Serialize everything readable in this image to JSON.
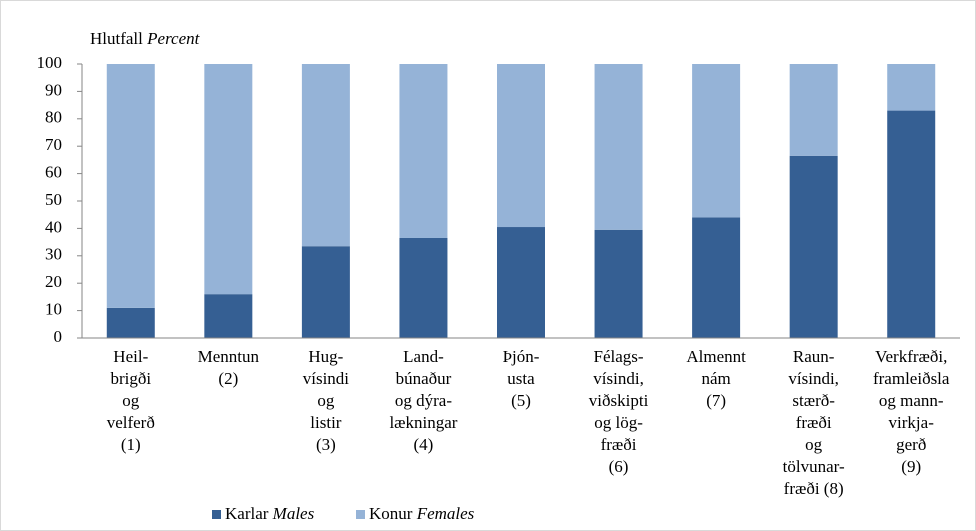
{
  "chart_data": {
    "type": "stacked_bar",
    "ylabel": "Hlutfall",
    "ylabel_en": "Percent",
    "categories": [
      [
        "Heil-",
        "brigði",
        "og",
        "velferð",
        "(1)"
      ],
      [
        "Menntun",
        "(2)"
      ],
      [
        "Hug-",
        "vísindi",
        "og",
        "listir",
        "(3)"
      ],
      [
        "Land-",
        "búnaður",
        "og dýra-",
        "lækningar",
        "(4)"
      ],
      [
        "Þjón-",
        "usta",
        "(5)"
      ],
      [
        "Félags-",
        "vísindi,",
        "viðskipti",
        "og lög-",
        "fræði",
        "(6)"
      ],
      [
        "Almennt",
        "nám",
        "(7)"
      ],
      [
        "Raun-",
        "vísindi,",
        "stærð-",
        "fræði",
        "og",
        "tölvunar-",
        "fræði (8)"
      ],
      [
        "Verkfræði,",
        "framleiðsla",
        "og mann-",
        "virkja-",
        "gerð",
        "(9)"
      ]
    ],
    "series": [
      {
        "name": "Karlar",
        "name_en": "Males",
        "color": "#355f93",
        "values": [
          11,
          16,
          33.5,
          36.5,
          40.5,
          39.5,
          44,
          66.5,
          83
        ]
      },
      {
        "name": "Konur",
        "name_en": "Females",
        "color": "#95b3d7",
        "values": [
          89,
          84,
          66.5,
          63.5,
          59.5,
          60.5,
          56,
          33.5,
          17
        ]
      }
    ],
    "ylim": [
      0,
      100
    ],
    "yticks": [
      0,
      10,
      20,
      30,
      40,
      50,
      60,
      70,
      80,
      90,
      100
    ],
    "grid": false,
    "legend": "bottom"
  }
}
